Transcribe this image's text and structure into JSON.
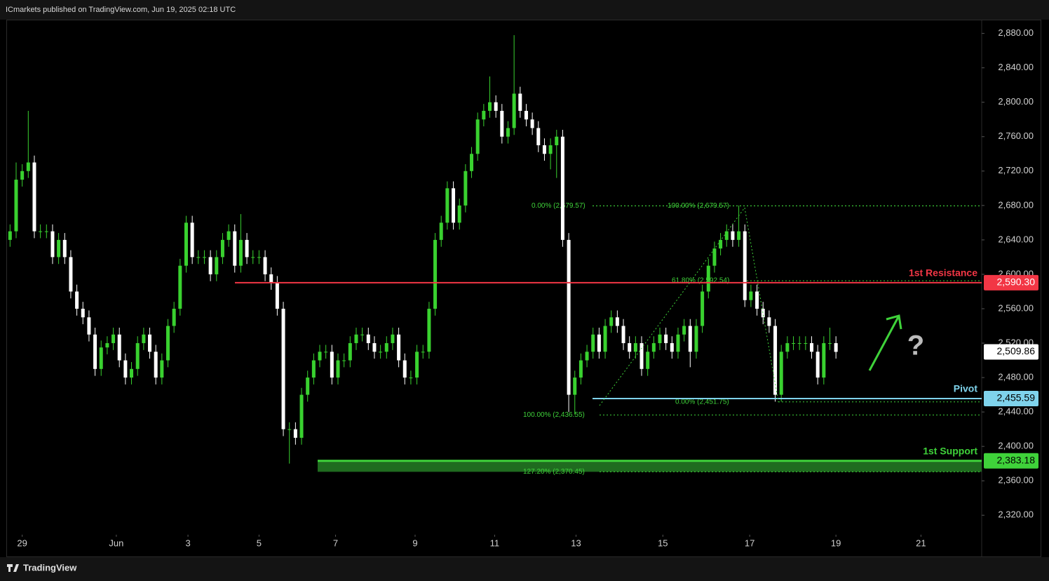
{
  "header": "ICmarkets published on TradingView.com, Jun 19, 2025 02:18 UTC",
  "footer": "TradingView",
  "chart_data": {
    "type": "candlestick",
    "up_color": "#39d12f",
    "down_color": "#ffffff",
    "xlim": [
      -0.5,
      160
    ],
    "xticks": [
      {
        "value": 2,
        "label": "29"
      },
      {
        "value": 17.5,
        "label": "Jun"
      },
      {
        "value": 29.3,
        "label": "3"
      },
      {
        "value": 41,
        "label": "5"
      },
      {
        "value": 53.6,
        "label": "7"
      },
      {
        "value": 66.7,
        "label": "9"
      },
      {
        "value": 79.8,
        "label": "11"
      },
      {
        "value": 93.2,
        "label": "13"
      },
      {
        "value": 107.5,
        "label": "15"
      },
      {
        "value": 121.8,
        "label": "17"
      },
      {
        "value": 136,
        "label": "19"
      },
      {
        "value": 150,
        "label": "21"
      }
    ],
    "ylim": [
      2299,
      2896
    ],
    "yticks": [
      {
        "value": 2320,
        "label": "2,320.00"
      },
      {
        "value": 2360,
        "label": "2,360.00"
      },
      {
        "value": 2400,
        "label": "2,400.00"
      },
      {
        "value": 2440,
        "label": "2,440.00"
      },
      {
        "value": 2480,
        "label": "2,480.00"
      },
      {
        "value": 2520,
        "label": "2,520.00"
      },
      {
        "value": 2560,
        "label": "2,560.00"
      },
      {
        "value": 2600,
        "label": "2,600.00"
      },
      {
        "value": 2640,
        "label": "2,640.00"
      },
      {
        "value": 2680,
        "label": "2,680.00"
      },
      {
        "value": 2720,
        "label": "2,720.00"
      },
      {
        "value": 2760,
        "label": "2,760.00"
      },
      {
        "value": 2800,
        "label": "2,800.00"
      },
      {
        "value": 2840,
        "label": "2,840.00"
      },
      {
        "value": 2880,
        "label": "2,880.00"
      }
    ],
    "ohlc": [
      [
        2640,
        2658,
        2632,
        2650
      ],
      [
        2650,
        2730,
        2642,
        2710
      ],
      [
        2710,
        2728,
        2702,
        2720
      ],
      [
        2720,
        2790,
        2712,
        2730
      ],
      [
        2730,
        2738,
        2642,
        2650
      ],
      [
        2650,
        2658,
        2642,
        2650
      ],
      [
        2650,
        2658,
        2642,
        2650
      ],
      [
        2650,
        2658,
        2612,
        2620
      ],
      [
        2620,
        2648,
        2612,
        2640
      ],
      [
        2640,
        2648,
        2612,
        2620
      ],
      [
        2620,
        2628,
        2572,
        2580
      ],
      [
        2580,
        2588,
        2552,
        2560
      ],
      [
        2560,
        2568,
        2542,
        2550
      ],
      [
        2550,
        2558,
        2522,
        2530
      ],
      [
        2530,
        2538,
        2482,
        2490
      ],
      [
        2490,
        2523,
        2482,
        2515
      ],
      [
        2515,
        2528,
        2507,
        2520
      ],
      [
        2520,
        2538,
        2512,
        2530
      ],
      [
        2530,
        2538,
        2492,
        2500
      ],
      [
        2500,
        2508,
        2472,
        2480
      ],
      [
        2480,
        2498,
        2472,
        2490
      ],
      [
        2490,
        2528,
        2482,
        2520
      ],
      [
        2520,
        2538,
        2512,
        2530
      ],
      [
        2530,
        2538,
        2502,
        2510
      ],
      [
        2510,
        2518,
        2472,
        2480
      ],
      [
        2480,
        2508,
        2472,
        2500
      ],
      [
        2500,
        2548,
        2492,
        2540
      ],
      [
        2540,
        2568,
        2532,
        2560
      ],
      [
        2560,
        2618,
        2552,
        2610
      ],
      [
        2610,
        2668,
        2602,
        2660
      ],
      [
        2660,
        2668,
        2612,
        2620
      ],
      [
        2620,
        2628,
        2612,
        2620
      ],
      [
        2620,
        2628,
        2612,
        2620
      ],
      [
        2620,
        2628,
        2592,
        2600
      ],
      [
        2600,
        2628,
        2592,
        2620
      ],
      [
        2620,
        2648,
        2612,
        2640
      ],
      [
        2640,
        2658,
        2632,
        2650
      ],
      [
        2650,
        2658,
        2602,
        2610
      ],
      [
        2610,
        2670,
        2602,
        2640
      ],
      [
        2640,
        2648,
        2612,
        2620
      ],
      [
        2620,
        2628,
        2612,
        2620
      ],
      [
        2620,
        2628,
        2612,
        2620
      ],
      [
        2620,
        2628,
        2592,
        2600
      ],
      [
        2600,
        2608,
        2582,
        2590
      ],
      [
        2590,
        2598,
        2552,
        2560
      ],
      [
        2560,
        2568,
        2412,
        2420
      ],
      [
        2420,
        2428,
        2380,
        2420
      ],
      [
        2420,
        2428,
        2402,
        2410
      ],
      [
        2410,
        2468,
        2402,
        2460
      ],
      [
        2460,
        2488,
        2452,
        2480
      ],
      [
        2480,
        2508,
        2472,
        2500
      ],
      [
        2500,
        2518,
        2492,
        2510
      ],
      [
        2510,
        2518,
        2502,
        2510
      ],
      [
        2510,
        2518,
        2472,
        2480
      ],
      [
        2480,
        2508,
        2472,
        2500
      ],
      [
        2500,
        2508,
        2492,
        2500
      ],
      [
        2500,
        2528,
        2492,
        2520
      ],
      [
        2520,
        2538,
        2512,
        2530
      ],
      [
        2530,
        2538,
        2522,
        2530
      ],
      [
        2530,
        2538,
        2512,
        2520
      ],
      [
        2520,
        2528,
        2502,
        2510
      ],
      [
        2510,
        2518,
        2502,
        2510
      ],
      [
        2510,
        2528,
        2502,
        2520
      ],
      [
        2520,
        2538,
        2512,
        2530
      ],
      [
        2530,
        2538,
        2492,
        2500
      ],
      [
        2500,
        2508,
        2472,
        2480
      ],
      [
        2480,
        2488,
        2472,
        2480
      ],
      [
        2480,
        2518,
        2472,
        2510
      ],
      [
        2510,
        2518,
        2502,
        2510
      ],
      [
        2510,
        2568,
        2502,
        2560
      ],
      [
        2560,
        2648,
        2552,
        2640
      ],
      [
        2640,
        2668,
        2632,
        2660
      ],
      [
        2660,
        2708,
        2652,
        2700
      ],
      [
        2700,
        2708,
        2652,
        2660
      ],
      [
        2660,
        2688,
        2652,
        2680
      ],
      [
        2680,
        2728,
        2672,
        2720
      ],
      [
        2720,
        2748,
        2712,
        2740
      ],
      [
        2740,
        2788,
        2732,
        2780
      ],
      [
        2780,
        2798,
        2772,
        2790
      ],
      [
        2790,
        2830,
        2782,
        2800
      ],
      [
        2800,
        2808,
        2782,
        2790
      ],
      [
        2790,
        2798,
        2752,
        2760
      ],
      [
        2760,
        2778,
        2752,
        2770
      ],
      [
        2770,
        2878,
        2762,
        2810
      ],
      [
        2810,
        2818,
        2782,
        2790
      ],
      [
        2790,
        2798,
        2772,
        2780
      ],
      [
        2780,
        2788,
        2762,
        2770
      ],
      [
        2770,
        2778,
        2742,
        2750
      ],
      [
        2750,
        2758,
        2732,
        2740
      ],
      [
        2740,
        2758,
        2722,
        2750
      ],
      [
        2750,
        2768,
        2712,
        2760
      ],
      [
        2760,
        2768,
        2632,
        2640
      ],
      [
        2640,
        2648,
        2440,
        2460
      ],
      [
        2460,
        2488,
        2437,
        2480
      ],
      [
        2480,
        2508,
        2472,
        2500
      ],
      [
        2500,
        2518,
        2492,
        2510
      ],
      [
        2510,
        2538,
        2502,
        2530
      ],
      [
        2530,
        2538,
        2502,
        2510
      ],
      [
        2510,
        2548,
        2502,
        2540
      ],
      [
        2540,
        2558,
        2532,
        2550
      ],
      [
        2550,
        2558,
        2532,
        2540
      ],
      [
        2540,
        2548,
        2512,
        2520
      ],
      [
        2520,
        2528,
        2502,
        2510
      ],
      [
        2510,
        2528,
        2502,
        2520
      ],
      [
        2520,
        2528,
        2482,
        2490
      ],
      [
        2490,
        2518,
        2482,
        2510
      ],
      [
        2510,
        2528,
        2502,
        2520
      ],
      [
        2520,
        2538,
        2512,
        2530
      ],
      [
        2530,
        2538,
        2512,
        2520
      ],
      [
        2520,
        2528,
        2502,
        2510
      ],
      [
        2510,
        2538,
        2502,
        2530
      ],
      [
        2530,
        2548,
        2522,
        2540
      ],
      [
        2540,
        2548,
        2492,
        2510
      ],
      [
        2510,
        2548,
        2502,
        2540
      ],
      [
        2540,
        2588,
        2532,
        2580
      ],
      [
        2580,
        2618,
        2572,
        2610
      ],
      [
        2610,
        2638,
        2602,
        2630
      ],
      [
        2630,
        2648,
        2622,
        2640
      ],
      [
        2640,
        2658,
        2632,
        2650
      ],
      [
        2650,
        2658,
        2632,
        2640
      ],
      [
        2640,
        2680,
        2632,
        2650
      ],
      [
        2650,
        2658,
        2562,
        2570
      ],
      [
        2570,
        2588,
        2562,
        2580
      ],
      [
        2580,
        2588,
        2552,
        2560
      ],
      [
        2560,
        2568,
        2542,
        2550
      ],
      [
        2550,
        2558,
        2532,
        2540
      ],
      [
        2540,
        2548,
        2452,
        2460
      ],
      [
        2460,
        2518,
        2452,
        2510
      ],
      [
        2510,
        2528,
        2502,
        2520
      ],
      [
        2520,
        2528,
        2512,
        2520
      ],
      [
        2520,
        2528,
        2512,
        2520
      ],
      [
        2520,
        2528,
        2512,
        2520
      ],
      [
        2520,
        2528,
        2502,
        2510
      ],
      [
        2510,
        2518,
        2472,
        2480
      ],
      [
        2480,
        2528,
        2472,
        2520
      ],
      [
        2520,
        2538,
        2512,
        2520
      ],
      [
        2520,
        2528,
        2502,
        2509.86
      ]
    ],
    "levels": [
      {
        "name": "1st Resistance",
        "value": 2590.3,
        "label": "2,590.30",
        "color": "#f23645"
      },
      {
        "name": "Pivot",
        "value": 2455.59,
        "label": "2,455.59",
        "color": "#7fd3ec"
      },
      {
        "name": "1st Support",
        "value": 2383.18,
        "label": "2,383.18",
        "color": "#3fd23a"
      }
    ],
    "last_price": {
      "value": 2509.86,
      "label": "2,509.86"
    },
    "fib_levels": [
      {
        "label": "0.00% (2,679.57)",
        "value": 2679.57
      },
      {
        "label": "100.00% (2,679.57)",
        "value": 2679.57
      },
      {
        "label": "61.80% (2,592.54)",
        "value": 2592.54
      },
      {
        "label": "0.00% (2,451.75)",
        "value": 2451.75
      },
      {
        "label": "100.00% (2,436.55)",
        "value": 2436.55
      },
      {
        "label": "127.20% (2,370.45)",
        "value": 2370.45
      }
    ],
    "fib_color": "#3fd23a",
    "annotation": "?"
  }
}
